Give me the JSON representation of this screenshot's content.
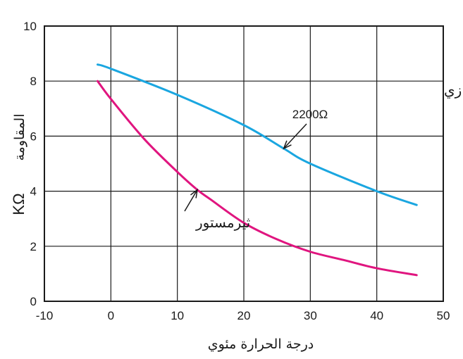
{
  "chart_data": {
    "type": "line",
    "xlabel": "درجة الحرارة مئوي",
    "ylabel_unit": "KΩ",
    "ylabel_text": "المقاومة",
    "xlim": [
      -10,
      50
    ],
    "ylim": [
      0,
      10
    ],
    "x_ticks": [
      -10,
      0,
      10,
      20,
      30,
      40,
      50
    ],
    "y_ticks": [
      0,
      2,
      4,
      6,
      8,
      10
    ],
    "x_tick_labels": [
      "-10",
      "0",
      "10",
      "20",
      "30",
      "40",
      "50"
    ],
    "y_tick_labels": [
      "0",
      "2",
      "4",
      "6",
      "8",
      "10"
    ],
    "grid": true,
    "series": [
      {
        "name": "ثيرمستور",
        "color": "#e0157f",
        "x": [
          -2,
          0,
          5,
          10,
          13,
          15,
          20,
          25,
          30,
          35,
          40,
          46
        ],
        "y": [
          8.0,
          7.35,
          5.9,
          4.7,
          4.05,
          3.7,
          2.85,
          2.25,
          1.8,
          1.5,
          1.2,
          0.95
        ]
      },
      {
        "name": "ثيرمستور مع مقاومة على التوازي",
        "color": "#1aa6e0",
        "x": [
          -2,
          0,
          10,
          20,
          26,
          30,
          40,
          46
        ],
        "y": [
          8.6,
          8.45,
          7.5,
          6.4,
          5.55,
          5.0,
          4.0,
          3.5
        ]
      }
    ],
    "annotations": [
      {
        "text_line1": "ثيرمستور مع مقاومة على التوازي",
        "text_line2": "2200Ω",
        "target_series": 1,
        "target_x": 26,
        "target_y": 5.55
      },
      {
        "text_line1": "ثيرمستور",
        "target_series": 0,
        "target_x": 13,
        "target_y": 4.05
      }
    ]
  }
}
